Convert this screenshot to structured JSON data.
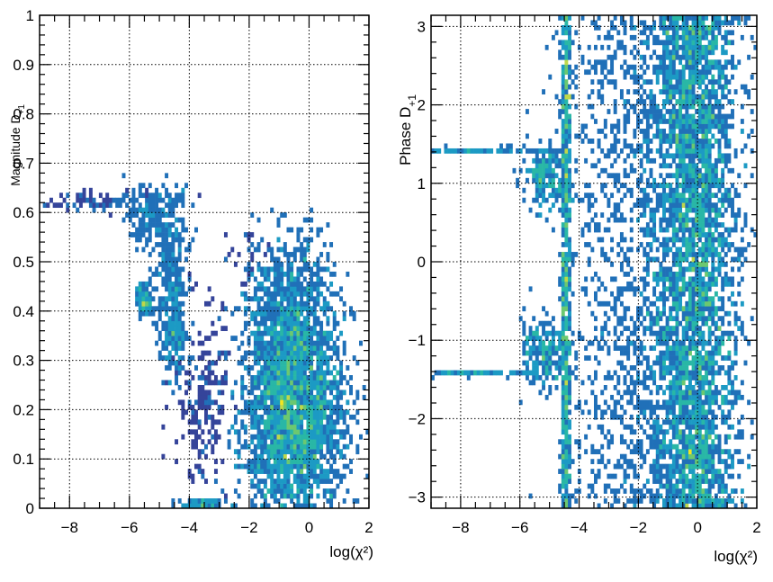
{
  "chart_data": [
    {
      "type": "heatmap",
      "title": "",
      "xlabel": "log(χ²)",
      "ylabel_main": "Magnitude D",
      "ylabel_sub": "+1",
      "xlim": [
        -9,
        2
      ],
      "ylim": [
        0,
        1
      ],
      "xticks": [
        -8,
        -6,
        -4,
        -2,
        0,
        2
      ],
      "xtick_labels": [
        "−8",
        "−6",
        "−4",
        "−2",
        "0",
        "2"
      ],
      "yticks": [
        0,
        0.1,
        0.2,
        0.3,
        0.4,
        0.5,
        0.6,
        0.7,
        0.8,
        0.9,
        1
      ],
      "ytick_labels": [
        "0",
        "0.1",
        "0.2",
        "0.3",
        "0.4",
        "0.5",
        "0.6",
        "0.7",
        "0.8",
        "0.9",
        "1"
      ],
      "grid": true,
      "colormap": [
        "#35449a",
        "#2070b8",
        "#1c9ac4",
        "#29b7a6",
        "#6cc870",
        "#bfd84a",
        "#f4e61f"
      ],
      "clusters": [
        {
          "cx": -0.5,
          "cy": 0.2,
          "sx": 0.85,
          "sy": 0.12,
          "n": 2600,
          "w": 1.0
        },
        {
          "cx": -0.7,
          "cy": 0.42,
          "sx": 0.7,
          "sy": 0.07,
          "n": 500,
          "w": 0.7
        },
        {
          "cx": -7.0,
          "cy": 0.62,
          "sx": 1.1,
          "sy": 0.01,
          "n": 100,
          "w": 0.3
        },
        {
          "cx": -5.2,
          "cy": 0.59,
          "sx": 0.5,
          "sy": 0.03,
          "n": 220,
          "w": 0.5
        },
        {
          "cx": -4.6,
          "cy": 0.48,
          "sx": 0.3,
          "sy": 0.07,
          "n": 230,
          "w": 0.6
        },
        {
          "cx": -5.5,
          "cy": 0.42,
          "sx": 0.15,
          "sy": 0.015,
          "n": 80,
          "w": 0.9
        },
        {
          "cx": -4.45,
          "cy": 0.35,
          "sx": 0.25,
          "sy": 0.05,
          "n": 160,
          "w": 0.8
        },
        {
          "cx": -3.6,
          "cy": 0.22,
          "sx": 0.45,
          "sy": 0.09,
          "n": 200,
          "w": 0.3
        },
        {
          "cx": -2.2,
          "cy": 0.52,
          "sx": 0.5,
          "sy": 0.04,
          "n": 110,
          "w": 0.2
        },
        {
          "cx": -3.5,
          "cy": 0.01,
          "sx": 0.4,
          "sy": 0.005,
          "n": 70,
          "w": 0.8
        }
      ]
    },
    {
      "type": "heatmap",
      "title": "",
      "xlabel": "log(χ²)",
      "ylabel_main": "Phase D",
      "ylabel_sub": "+1",
      "xlim": [
        -9,
        2
      ],
      "ylim": [
        -3.14159,
        3.14159
      ],
      "xticks": [
        -8,
        -6,
        -4,
        -2,
        0,
        2
      ],
      "xtick_labels": [
        "−8",
        "−6",
        "−4",
        "−2",
        "0",
        "2"
      ],
      "yticks": [
        -3,
        -2,
        -1,
        0,
        1,
        2,
        3
      ],
      "ytick_labels": [
        "−3",
        "−2",
        "−1",
        "0",
        "1",
        "2",
        "3"
      ],
      "grid": true,
      "colormap": [
        "#35449a",
        "#2070b8",
        "#1c9ac4",
        "#29b7a6",
        "#6cc870",
        "#bfd84a",
        "#f4e61f"
      ],
      "clusters": [
        {
          "cx": -0.1,
          "cy": 0,
          "sx": 0.75,
          "sy": 9,
          "n": 3600,
          "w": 0.9
        },
        {
          "cx": -2.2,
          "cy": 0,
          "sx": 1.2,
          "sy": 9,
          "n": 1300,
          "w": 0.35
        },
        {
          "cx": -4.45,
          "cy": 0,
          "sx": 0.08,
          "sy": 9,
          "n": 700,
          "w": 0.9
        },
        {
          "cx": -5.2,
          "cy": 1.1,
          "sx": 0.35,
          "sy": 0.2,
          "n": 180,
          "w": 0.8
        },
        {
          "cx": -5.2,
          "cy": -1.15,
          "sx": 0.35,
          "sy": 0.2,
          "n": 180,
          "w": 0.8
        },
        {
          "cx": -7.5,
          "cy": 1.42,
          "sx": 1.0,
          "sy": 0.015,
          "n": 90,
          "w": 0.4
        },
        {
          "cx": -7.3,
          "cy": -1.42,
          "sx": 1.0,
          "sy": 0.015,
          "n": 100,
          "w": 0.4
        }
      ]
    }
  ]
}
